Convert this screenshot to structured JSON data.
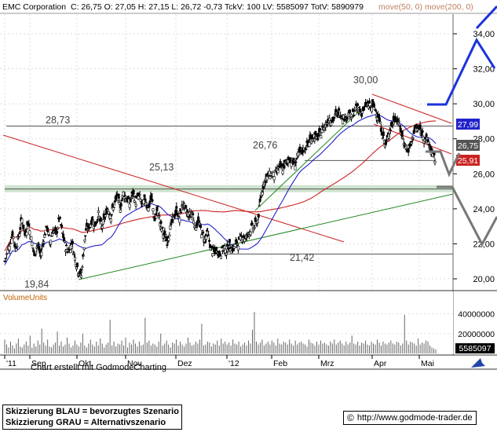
{
  "header": {
    "name": "EMC Corporation",
    "quote": "C: 26,75 O: 27,05 H: 27,15 L: 26,72 -0,73 TckV: 100 LV: 5585097 TotV: 5890979",
    "ma_legend": "move(50, 0)  move(200, 0)",
    "ma_colors": {
      "ma50": "#2222cc",
      "ma200": "#cc2222"
    }
  },
  "footer": {
    "credit": "Chart erstellt mit GodmodeCharting",
    "scenario_blue": "Skizzierung BLAU = bevorzugtes Szenario",
    "scenario_gray": "Skizzierung GRAU = Alternativszenario",
    "copyright_symbol": "©",
    "url": "http://www.godmode-trader.de"
  },
  "volume_label": "VolumeUnits",
  "chart_data": {
    "type": "candlestick",
    "title": "EMC Corporation",
    "y_axis": {
      "ticks": [
        "34,00",
        "32,00",
        "30,00",
        "28,00",
        "26,00",
        "24,00",
        "22,00",
        "20,00"
      ],
      "range": [
        19.6,
        35.3
      ]
    },
    "volume_axis": {
      "ticks": [
        "40000000",
        "20000000"
      ],
      "last_value": "5585097"
    },
    "x_axis": {
      "ticks": [
        "'11",
        "Sep",
        "Okt",
        "Nov",
        "Dez",
        "'12",
        "Feb",
        "Mrz",
        "Apr",
        "Mai"
      ]
    },
    "annotations": [
      "30,00",
      "28,73",
      "26,76",
      "25,13",
      "21,42",
      "19,84"
    ],
    "price_badges": [
      {
        "label": "27,99",
        "color": "#2222cc"
      },
      {
        "label": "26,75",
        "color": "#555555"
      },
      {
        "label": "25,91",
        "color": "#cc2222"
      }
    ],
    "levels": [
      28.73,
      26.76,
      25.13,
      21.42
    ],
    "price_path": [
      [
        0,
        21.0
      ],
      [
        5,
        21.8
      ],
      [
        10,
        22.6
      ],
      [
        14,
        21.7
      ],
      [
        18,
        22.4
      ],
      [
        22,
        23.4
      ],
      [
        26,
        22.5
      ],
      [
        30,
        23.2
      ],
      [
        34,
        22.3
      ],
      [
        38,
        21.3
      ],
      [
        42,
        22.0
      ],
      [
        46,
        21.3
      ],
      [
        50,
        22.3
      ],
      [
        54,
        23.0
      ],
      [
        58,
        22.1
      ],
      [
        62,
        22.8
      ],
      [
        66,
        22.5
      ],
      [
        70,
        23.5
      ],
      [
        74,
        22.6
      ],
      [
        78,
        21.8
      ],
      [
        82,
        21.6
      ],
      [
        86,
        22.1
      ],
      [
        90,
        21.2
      ],
      [
        94,
        20.5
      ],
      [
        98,
        20.2
      ],
      [
        101,
        21.5
      ],
      [
        104,
        22.8
      ],
      [
        108,
        23.0
      ],
      [
        112,
        23.4
      ],
      [
        116,
        23.1
      ],
      [
        120,
        23.7
      ],
      [
        124,
        22.9
      ],
      [
        128,
        23.5
      ],
      [
        132,
        24.0
      ],
      [
        136,
        23.6
      ],
      [
        140,
        24.2
      ],
      [
        144,
        24.7
      ],
      [
        148,
        24.1
      ],
      [
        152,
        24.9
      ],
      [
        156,
        24.6
      ],
      [
        160,
        24.3
      ],
      [
        164,
        24.9
      ],
      [
        168,
        24.4
      ],
      [
        172,
        24.8
      ],
      [
        176,
        24.2
      ],
      [
        180,
        24.6
      ],
      [
        184,
        24.0
      ],
      [
        188,
        24.7
      ],
      [
        192,
        23.3
      ],
      [
        196,
        24.0
      ],
      [
        200,
        23.0
      ],
      [
        204,
        22.5
      ],
      [
        208,
        22.1
      ],
      [
        212,
        22.9
      ],
      [
        216,
        23.5
      ],
      [
        220,
        23.9
      ],
      [
        224,
        23.5
      ],
      [
        228,
        24.3
      ],
      [
        232,
        23.9
      ],
      [
        236,
        23.6
      ],
      [
        240,
        23.8
      ],
      [
        244,
        23.0
      ],
      [
        248,
        23.3
      ],
      [
        252,
        22.7
      ],
      [
        256,
        22.3
      ],
      [
        260,
        22.6
      ],
      [
        264,
        21.7
      ],
      [
        268,
        21.5
      ],
      [
        272,
        21.6
      ],
      [
        276,
        21.4
      ],
      [
        280,
        21.8
      ],
      [
        284,
        21.6
      ],
      [
        288,
        21.9
      ],
      [
        292,
        21.7
      ],
      [
        296,
        22.0
      ],
      [
        300,
        22.1
      ],
      [
        304,
        22.5
      ],
      [
        308,
        22.3
      ],
      [
        312,
        22.6
      ],
      [
        316,
        22.9
      ],
      [
        320,
        23.0
      ],
      [
        324,
        23.3
      ],
      [
        328,
        24.7
      ],
      [
        332,
        25.5
      ],
      [
        336,
        25.8
      ],
      [
        340,
        26.0
      ],
      [
        344,
        25.9
      ],
      [
        348,
        26.1
      ],
      [
        352,
        26.4
      ],
      [
        356,
        26.3
      ],
      [
        360,
        26.6
      ],
      [
        364,
        26.9
      ],
      [
        368,
        26.7
      ],
      [
        372,
        26.6
      ],
      [
        376,
        27.1
      ],
      [
        380,
        27.3
      ],
      [
        384,
        27.4
      ],
      [
        388,
        27.7
      ],
      [
        392,
        28.0
      ],
      [
        396,
        28.2
      ],
      [
        400,
        28.0
      ],
      [
        404,
        28.3
      ],
      [
        408,
        28.6
      ],
      [
        412,
        28.9
      ],
      [
        416,
        29.2
      ],
      [
        420,
        29.0
      ],
      [
        424,
        29.4
      ],
      [
        428,
        29.5
      ],
      [
        432,
        29.3
      ],
      [
        436,
        29.2
      ],
      [
        440,
        29.4
      ],
      [
        444,
        29.2
      ],
      [
        448,
        29.6
      ],
      [
        452,
        29.8
      ],
      [
        456,
        29.5
      ],
      [
        460,
        29.7
      ],
      [
        464,
        30.0
      ],
      [
        468,
        29.8
      ],
      [
        472,
        29.9
      ],
      [
        476,
        29.6
      ],
      [
        480,
        29.0
      ],
      [
        484,
        28.2
      ],
      [
        488,
        27.6
      ],
      [
        492,
        28.4
      ],
      [
        496,
        28.8
      ],
      [
        500,
        29.2
      ],
      [
        504,
        29.0
      ],
      [
        508,
        28.3
      ],
      [
        512,
        27.7
      ],
      [
        516,
        27.3
      ],
      [
        520,
        27.6
      ],
      [
        524,
        28.4
      ],
      [
        528,
        28.6
      ],
      [
        532,
        28.5
      ],
      [
        536,
        28.2
      ],
      [
        540,
        28.0
      ],
      [
        544,
        27.6
      ],
      [
        548,
        27.1
      ],
      [
        552,
        26.75
      ]
    ],
    "volume": [
      14,
      9,
      6,
      12,
      8,
      5,
      10,
      15,
      7,
      6,
      9,
      12,
      8,
      18,
      6,
      10,
      7,
      13,
      9,
      25,
      11,
      8,
      14,
      7,
      6,
      9,
      11,
      22,
      8,
      12,
      7,
      9,
      16,
      10,
      6,
      8,
      13,
      9,
      7,
      11,
      20,
      8,
      6,
      10,
      14,
      9,
      7,
      12,
      8,
      15,
      10,
      6,
      9,
      11,
      34,
      8,
      12,
      7,
      10,
      9,
      13,
      8,
      16,
      6,
      11,
      9,
      14,
      10,
      7,
      12,
      8,
      9,
      36,
      11,
      13,
      8,
      10,
      9,
      7,
      12,
      20,
      8,
      10,
      13,
      9,
      6,
      11,
      10,
      14,
      8,
      12,
      9,
      7,
      10,
      16,
      11,
      8,
      9,
      12,
      10,
      14,
      30,
      8,
      9,
      12,
      11,
      7,
      10,
      9,
      13,
      8,
      15,
      10,
      12,
      9,
      11,
      8,
      14,
      10,
      9,
      12,
      7,
      9,
      11,
      8,
      13,
      10,
      24,
      42,
      12,
      9,
      11,
      14,
      8,
      10,
      12,
      9,
      13,
      11,
      8,
      15,
      10,
      9,
      12,
      11,
      9,
      14,
      10,
      8,
      13,
      9,
      11,
      12,
      10,
      9,
      7,
      14,
      11,
      10,
      8,
      12,
      9,
      13,
      10,
      11,
      9,
      8,
      12,
      10,
      14,
      9,
      11,
      13,
      10,
      8,
      12,
      9,
      11,
      18,
      10,
      9,
      12,
      8,
      11,
      10,
      13,
      9,
      8,
      12,
      10,
      9,
      14,
      11,
      8,
      12,
      10,
      9,
      11,
      13,
      10,
      9,
      12,
      11,
      8,
      10,
      39,
      13,
      9,
      12,
      11,
      10,
      8,
      15,
      9,
      11,
      10,
      13,
      12,
      8,
      6,
      5,
      4
    ]
  }
}
